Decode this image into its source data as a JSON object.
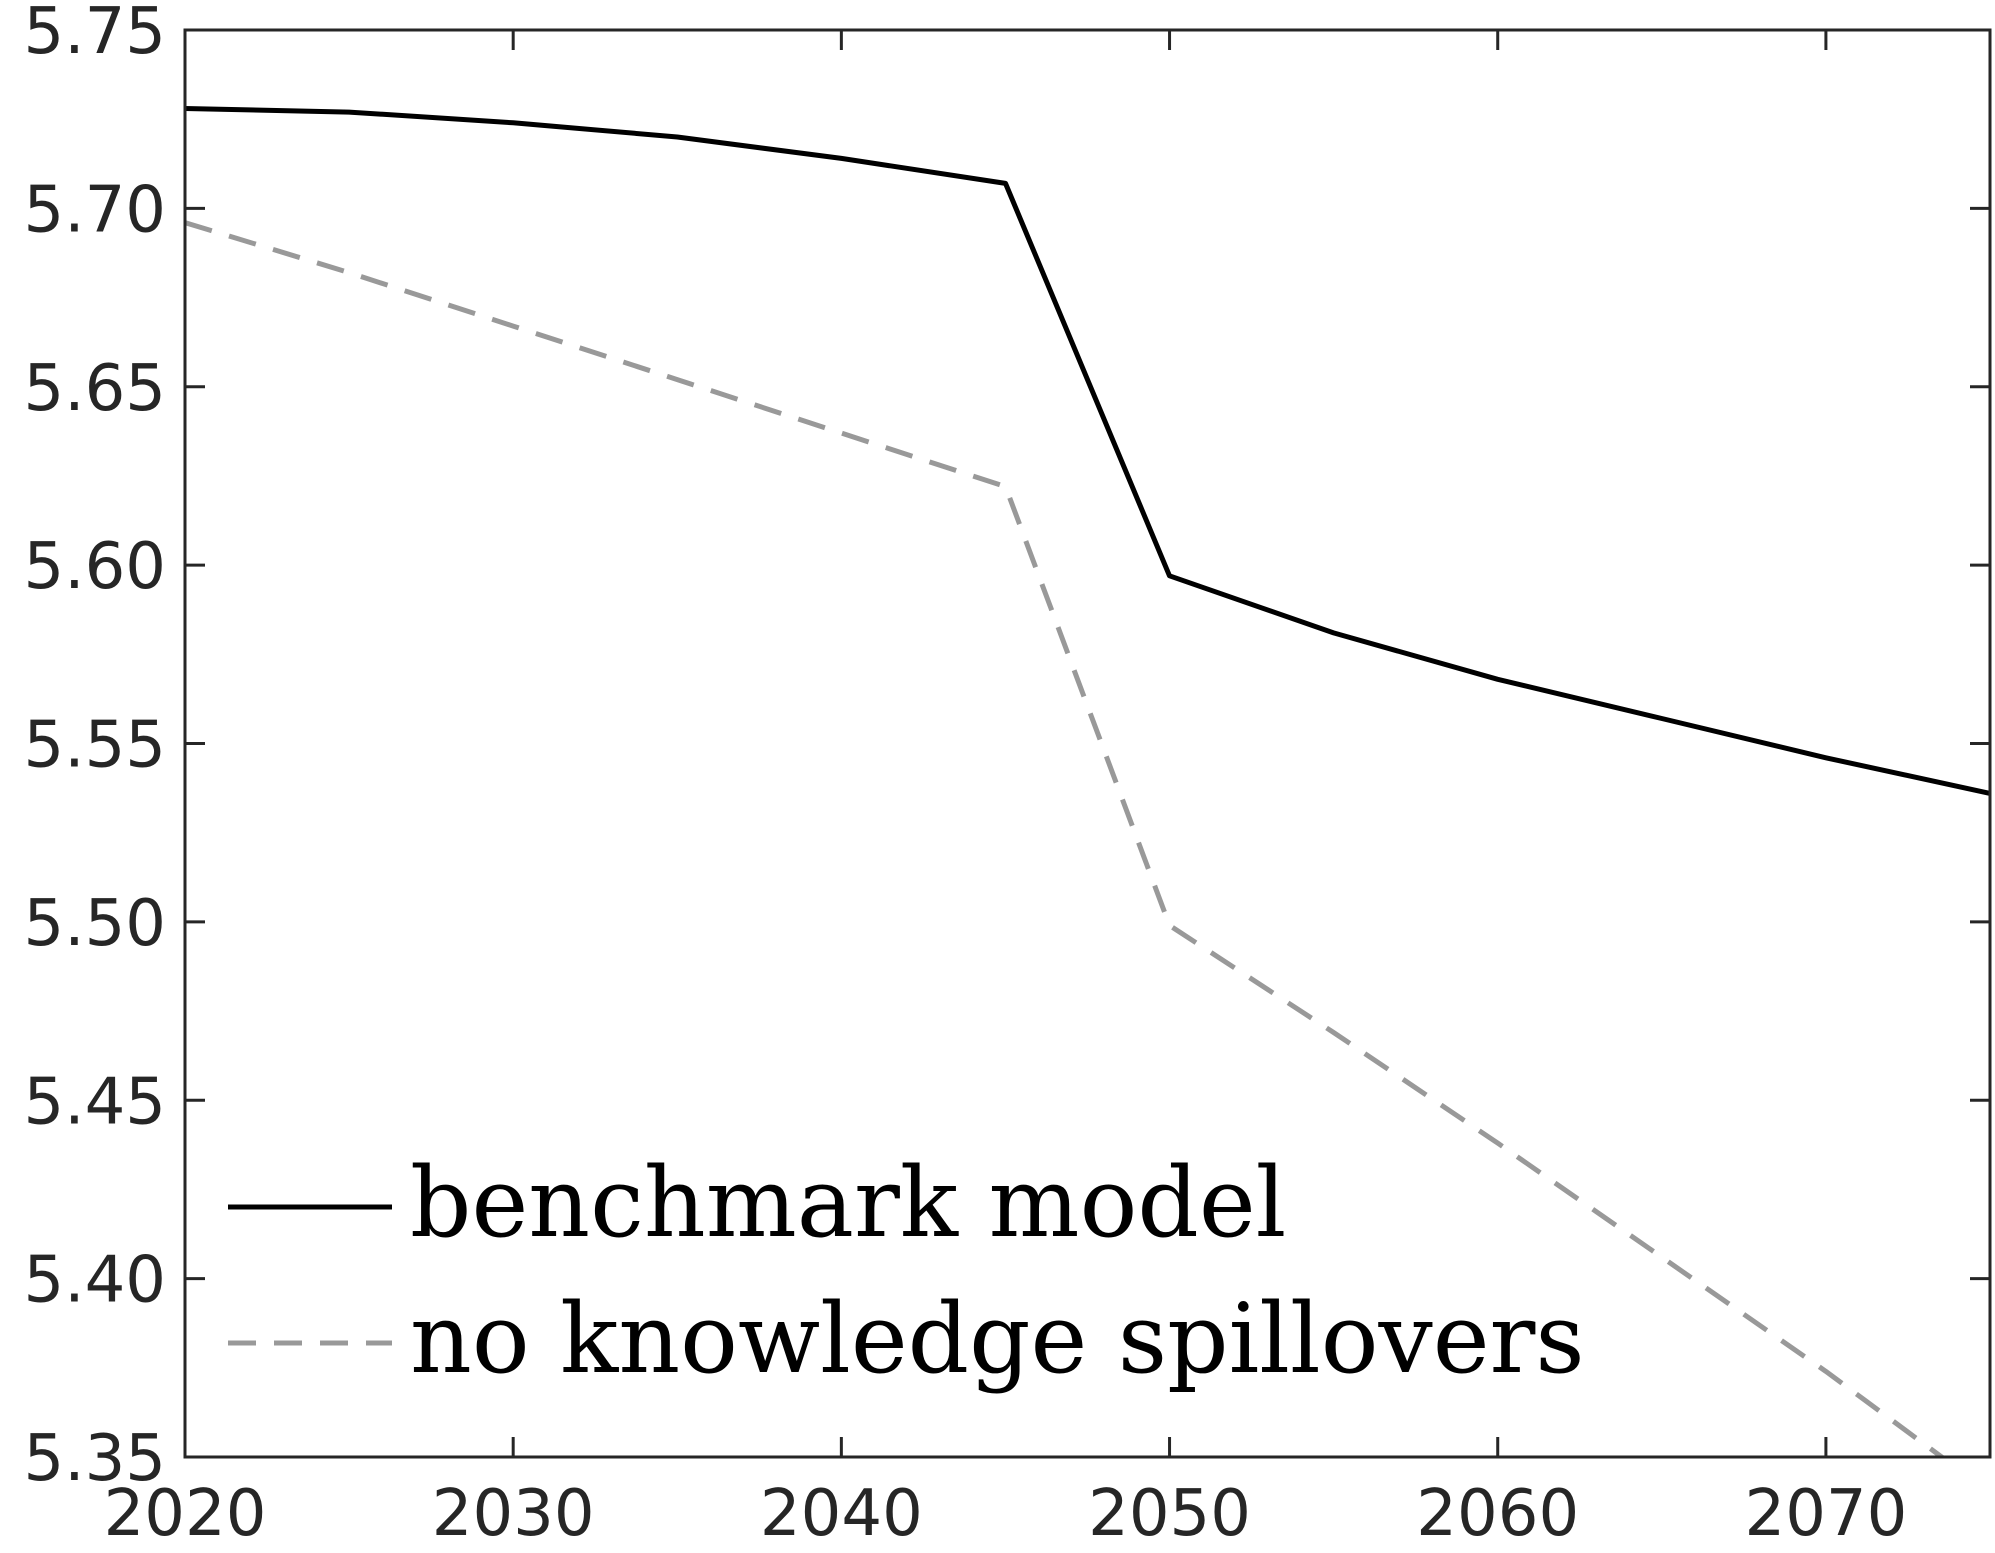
{
  "chart_data": {
    "type": "line",
    "title": "",
    "xlabel": "",
    "ylabel": "",
    "xlim": [
      2020,
      2075
    ],
    "ylim": [
      5.35,
      5.75
    ],
    "x_ticks": [
      2020,
      2030,
      2040,
      2050,
      2060,
      2070
    ],
    "x_tick_labels": [
      "2020",
      "2030",
      "2040",
      "2050",
      "2060",
      "2070"
    ],
    "y_ticks": [
      5.35,
      5.4,
      5.45,
      5.5,
      5.55,
      5.6,
      5.65,
      5.7,
      5.75
    ],
    "y_tick_labels": [
      "5.35",
      "5.40",
      "5.45",
      "5.50",
      "5.55",
      "5.60",
      "5.65",
      "5.70",
      "5.75"
    ],
    "grid": false,
    "legend_position": "bottom-left",
    "series": [
      {
        "name": "benchmark model",
        "color": "#000000",
        "line_style": "solid",
        "x": [
          2020,
          2025,
          2030,
          2035,
          2040,
          2045,
          2050,
          2055,
          2060,
          2065,
          2070,
          2075
        ],
        "y": [
          5.728,
          5.727,
          5.724,
          5.72,
          5.714,
          5.707,
          5.597,
          5.581,
          5.568,
          5.557,
          5.546,
          5.536
        ]
      },
      {
        "name": "no knowledge spillovers",
        "color": "#999999",
        "line_style": "dashed",
        "x": [
          2020,
          2025,
          2030,
          2035,
          2040,
          2045,
          2050,
          2055,
          2060,
          2065,
          2070,
          2075
        ],
        "y": [
          5.696,
          5.682,
          5.667,
          5.652,
          5.637,
          5.622,
          5.499,
          5.469,
          5.438,
          5.406,
          5.374,
          5.34
        ]
      }
    ]
  }
}
